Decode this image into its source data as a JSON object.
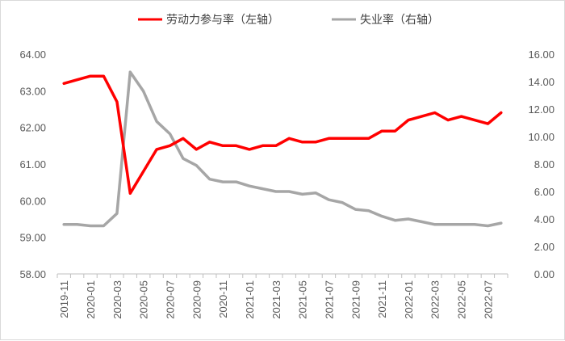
{
  "chart_data": {
    "type": "line",
    "legend": {
      "placement": "top-center",
      "entries": [
        {
          "label": "劳动力参与率（左轴）",
          "color": "#ff0000"
        },
        {
          "label": "失业率（右轴）",
          "color": "#a6a6a6"
        }
      ]
    },
    "grid": false,
    "x": [
      "2019-11",
      "2019-12",
      "2020-01",
      "2020-02",
      "2020-03",
      "2020-04",
      "2020-05",
      "2020-06",
      "2020-07",
      "2020-08",
      "2020-09",
      "2020-10",
      "2020-11",
      "2020-12",
      "2021-01",
      "2021-02",
      "2021-03",
      "2021-04",
      "2021-05",
      "2021-06",
      "2021-07",
      "2021-08",
      "2021-09",
      "2021-10",
      "2021-11",
      "2021-12",
      "2022-01",
      "2022-02",
      "2022-03",
      "2022-04",
      "2022-05",
      "2022-06",
      "2022-07",
      "2022-08"
    ],
    "x_tick_labels": [
      "2019-11",
      "2020-01",
      "2020-03",
      "2020-05",
      "2020-07",
      "2020-09",
      "2020-11",
      "2021-01",
      "2021-03",
      "2021-05",
      "2021-07",
      "2021-09",
      "2021-11",
      "2022-01",
      "2022-03",
      "2022-05",
      "2022-07"
    ],
    "y_left": {
      "lim": [
        58,
        64
      ],
      "ticks": [
        "58.00",
        "59.00",
        "60.00",
        "61.00",
        "62.00",
        "63.00",
        "64.00"
      ]
    },
    "y_right": {
      "lim": [
        0,
        16
      ],
      "ticks": [
        "0.00",
        "2.00",
        "4.00",
        "6.00",
        "8.00",
        "10.00",
        "12.00",
        "14.00",
        "16.00"
      ]
    },
    "series": [
      {
        "name": "劳动力参与率（左轴）",
        "axis": "left",
        "color": "#ff0000",
        "values": [
          63.2,
          63.3,
          63.4,
          63.4,
          62.7,
          60.2,
          60.8,
          61.4,
          61.5,
          61.7,
          61.4,
          61.6,
          61.5,
          61.5,
          61.4,
          61.5,
          61.5,
          61.7,
          61.6,
          61.6,
          61.7,
          61.7,
          61.7,
          61.7,
          61.9,
          61.9,
          62.2,
          62.3,
          62.4,
          62.2,
          62.3,
          62.2,
          62.1,
          62.4
        ]
      },
      {
        "name": "失业率（右轴）",
        "axis": "right",
        "color": "#a6a6a6",
        "values": [
          3.6,
          3.6,
          3.5,
          3.5,
          4.4,
          14.7,
          13.3,
          11.1,
          10.2,
          8.4,
          7.9,
          6.9,
          6.7,
          6.7,
          6.4,
          6.2,
          6.0,
          6.0,
          5.8,
          5.9,
          5.4,
          5.2,
          4.7,
          4.6,
          4.2,
          3.9,
          4.0,
          3.8,
          3.6,
          3.6,
          3.6,
          3.6,
          3.5,
          3.7
        ]
      }
    ]
  }
}
